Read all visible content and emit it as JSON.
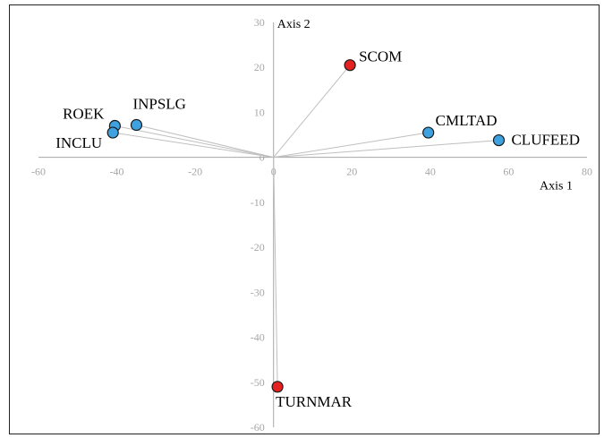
{
  "chart_data": {
    "type": "scatter",
    "title": "",
    "xlabel": "Axis 1",
    "ylabel": "Axis 2",
    "xlim": [
      -60,
      80
    ],
    "ylim": [
      -60,
      30
    ],
    "xticks": [
      -60,
      -40,
      -20,
      0,
      20,
      40,
      60,
      80
    ],
    "yticks": [
      30,
      20,
      10,
      0,
      -10,
      -20,
      -30,
      -40,
      -50,
      -60
    ],
    "grid": false,
    "vectors_from_origin": true,
    "colors": {
      "blue": "#3fa2e0",
      "red": "#e52222",
      "line": "#bfbfbf"
    },
    "points": [
      {
        "label": "SCOM",
        "x": 19.5,
        "y": 20.5,
        "color": "red"
      },
      {
        "label": "CMLTAD",
        "x": 39.5,
        "y": 5.5,
        "color": "blue"
      },
      {
        "label": "CLUFEED",
        "x": 57.5,
        "y": 3.8,
        "color": "blue"
      },
      {
        "label": "ROEK",
        "x": -40.5,
        "y": 7.0,
        "color": "blue"
      },
      {
        "label": "INPSLG",
        "x": -35.0,
        "y": 7.2,
        "color": "blue"
      },
      {
        "label": "INCLU",
        "x": -41.0,
        "y": 5.5,
        "color": "blue"
      },
      {
        "label": "TURNMAR",
        "x": 1.0,
        "y": -51.0,
        "color": "red"
      }
    ]
  }
}
